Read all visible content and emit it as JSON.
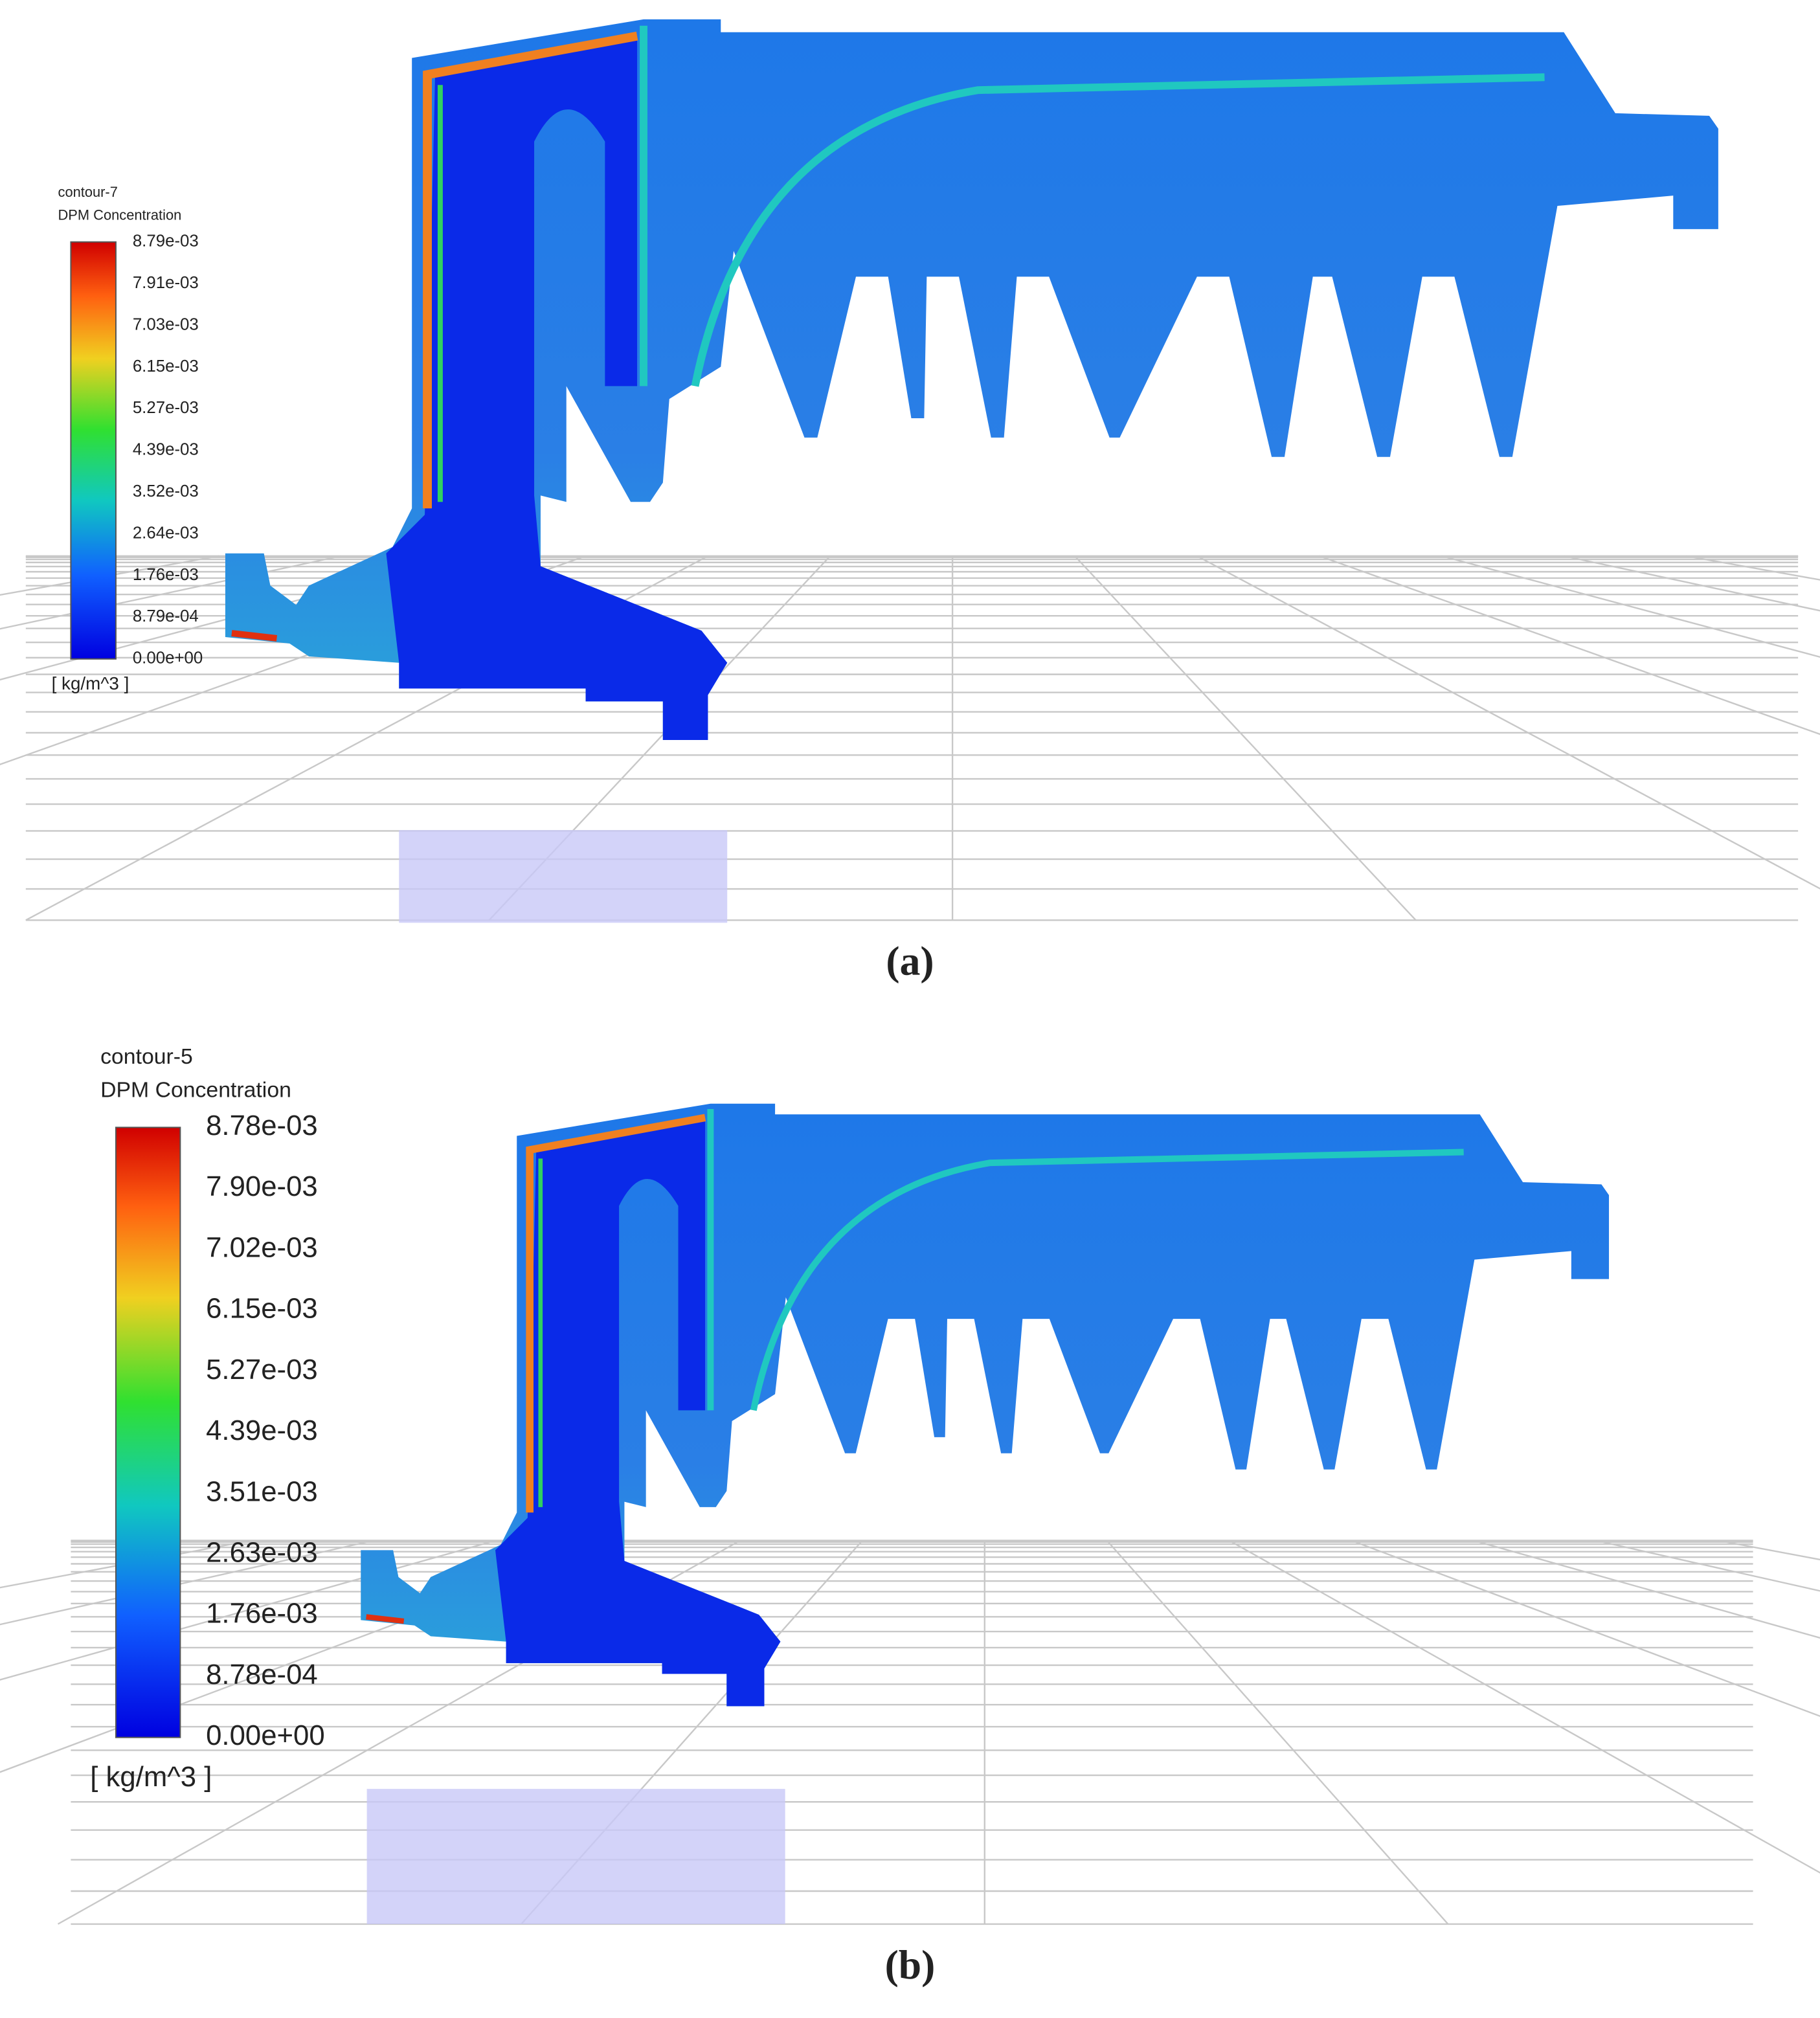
{
  "panels": [
    {
      "legend_title": [
        "contour-7",
        "DPM Concentration"
      ],
      "colorbar_labels": [
        "8.79e-03",
        "7.91e-03",
        "7.03e-03",
        "6.15e-03",
        "5.27e-03",
        "4.39e-03",
        "3.52e-03",
        "2.64e-03",
        "1.76e-03",
        "8.79e-04",
        "0.00e+00"
      ],
      "unit": "[ kg/m^3 ]",
      "caption": "(a)"
    },
    {
      "legend_title": [
        "contour-5",
        "DPM Concentration"
      ],
      "colorbar_labels": [
        "8.78e-03",
        "7.90e-03",
        "7.02e-03",
        "6.15e-03",
        "5.27e-03",
        "4.39e-03",
        "3.51e-03",
        "2.63e-03",
        "1.76e-03",
        "8.78e-04",
        "0.00e+00"
      ],
      "unit": "[ kg/m^3 ]",
      "caption": "(b)"
    }
  ]
}
